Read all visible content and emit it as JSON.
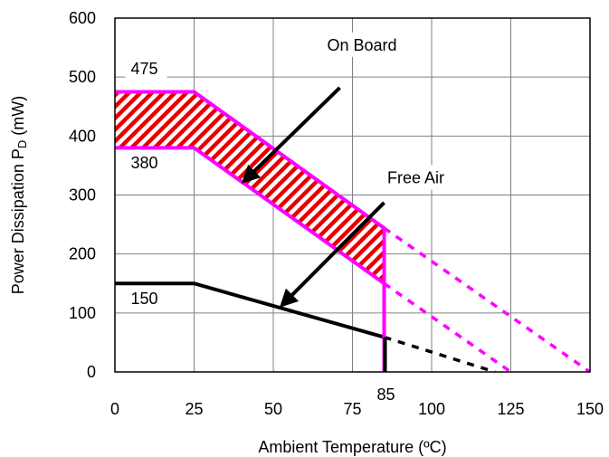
{
  "chart_data": {
    "type": "line",
    "title": "",
    "xlabel": "Ambient Temperature (ºC)",
    "ylabel_main": "Power Dissipation P",
    "ylabel_sub": "D",
    "ylabel_unit": " (mW)",
    "xlim": [
      0,
      150
    ],
    "ylim": [
      0,
      600
    ],
    "x_ticks": [
      "0",
      "25",
      "50",
      "75",
      "100",
      "125",
      "150"
    ],
    "y_ticks": [
      "0",
      "100",
      "200",
      "300",
      "400",
      "500",
      "600"
    ],
    "grid": true,
    "extra_x_tick": "85",
    "series": [
      {
        "key": "onboard_upper",
        "color": "#ff00ff",
        "x": [
          0,
          25,
          85
        ],
        "y": [
          475,
          475,
          244
        ]
      },
      {
        "key": "onboard_lower",
        "color": "#ff00ff",
        "x": [
          0,
          25,
          85
        ],
        "y": [
          380,
          380,
          150
        ]
      },
      {
        "key": "free_air",
        "color": "#000000",
        "x": [
          0,
          25,
          85
        ],
        "y": [
          150,
          150,
          59
        ]
      }
    ],
    "derating_extensions": [
      {
        "color": "#ff00ff",
        "x": [
          85,
          150
        ],
        "y": [
          244,
          0
        ]
      },
      {
        "color": "#ff00ff",
        "x": [
          85,
          125
        ],
        "y": [
          150,
          0
        ]
      },
      {
        "color": "#000000",
        "x": [
          85,
          120
        ],
        "y": [
          59,
          0
        ]
      }
    ],
    "annotations": [
      {
        "text": "475",
        "x": 5,
        "y": 505
      },
      {
        "text": "380",
        "x": 5,
        "y": 345
      },
      {
        "text": "150",
        "x": 5,
        "y": 115
      },
      {
        "text": "On Board",
        "x": 67,
        "y": 545
      },
      {
        "text": "Free Air",
        "x": 86,
        "y": 320
      }
    ],
    "arrows": [
      {
        "from": [
          71,
          482
        ],
        "to": [
          42,
          330
        ]
      },
      {
        "from": [
          85,
          287
        ],
        "to": [
          54,
          120
        ]
      }
    ],
    "colors": {
      "band_fill": "#e80000",
      "band_outline": "#ff00ff",
      "free_air": "#000000"
    }
  }
}
